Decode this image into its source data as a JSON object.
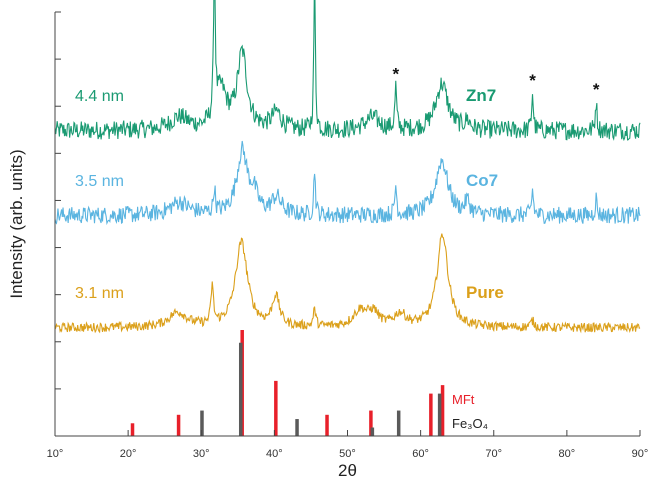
{
  "chart_data": {
    "type": "line",
    "title": "",
    "xlabel": "2θ",
    "ylabel": "Intensity (arb. units)",
    "xlim": [
      10,
      90
    ],
    "x_ticks": [
      "10°",
      "20°",
      "30°",
      "40°",
      "50°",
      "60°",
      "70°",
      "80°",
      "90°"
    ],
    "y_ticks_count": 9,
    "grid": false,
    "series": [
      {
        "name": "Zn7",
        "size_label": "4.4 nm",
        "color": "#1a9a72",
        "baseline": 0.72,
        "noise": 0.022,
        "peaks": [
          {
            "x": 27.0,
            "h": 0.03,
            "w": 1.5
          },
          {
            "x": 31.8,
            "h": 0.4,
            "w": 0.12
          },
          {
            "x": 32.7,
            "h": 0.09,
            "w": 0.9
          },
          {
            "x": 35.6,
            "h": 0.18,
            "w": 0.8
          },
          {
            "x": 40.3,
            "h": 0.04,
            "w": 0.8
          },
          {
            "x": 45.5,
            "h": 0.37,
            "w": 0.12
          },
          {
            "x": 53.4,
            "h": 0.03,
            "w": 1.2
          },
          {
            "x": 56.6,
            "h": 0.1,
            "w": 0.14
          },
          {
            "x": 62.9,
            "h": 0.11,
            "w": 1.0
          },
          {
            "x": 66.4,
            "h": 0.02,
            "w": 0.4
          },
          {
            "x": 75.3,
            "h": 0.09,
            "w": 0.14
          },
          {
            "x": 84.0,
            "h": 0.07,
            "w": 0.14
          }
        ]
      },
      {
        "name": "Co7",
        "size_label": "3.5 nm",
        "color": "#5ab4e0",
        "baseline": 0.52,
        "noise": 0.02,
        "peaks": [
          {
            "x": 27.0,
            "h": 0.03,
            "w": 1.5
          },
          {
            "x": 31.8,
            "h": 0.06,
            "w": 0.15
          },
          {
            "x": 35.6,
            "h": 0.15,
            "w": 0.9
          },
          {
            "x": 37.2,
            "h": 0.04,
            "w": 0.6
          },
          {
            "x": 40.3,
            "h": 0.04,
            "w": 0.8
          },
          {
            "x": 45.5,
            "h": 0.11,
            "w": 0.13
          },
          {
            "x": 56.6,
            "h": 0.07,
            "w": 0.15
          },
          {
            "x": 62.9,
            "h": 0.13,
            "w": 1.0
          },
          {
            "x": 66.4,
            "h": 0.03,
            "w": 0.4
          },
          {
            "x": 75.3,
            "h": 0.06,
            "w": 0.15
          },
          {
            "x": 84.0,
            "h": 0.04,
            "w": 0.15
          }
        ]
      },
      {
        "name": "Pure",
        "size_label": "3.1 nm",
        "color": "#dba01b",
        "baseline": 0.255,
        "noise": 0.011,
        "peaks": [
          {
            "x": 26.8,
            "h": 0.035,
            "w": 1.5
          },
          {
            "x": 31.5,
            "h": 0.09,
            "w": 0.2
          },
          {
            "x": 35.5,
            "h": 0.2,
            "w": 1.0
          },
          {
            "x": 40.2,
            "h": 0.07,
            "w": 0.6
          },
          {
            "x": 45.5,
            "h": 0.04,
            "w": 0.2
          },
          {
            "x": 51.8,
            "h": 0.04,
            "w": 1.2
          },
          {
            "x": 53.6,
            "h": 0.03,
            "w": 0.8
          },
          {
            "x": 57.2,
            "h": 0.03,
            "w": 1.0
          },
          {
            "x": 63.0,
            "h": 0.22,
            "w": 0.9
          },
          {
            "x": 75.3,
            "h": 0.015,
            "w": 0.3
          }
        ]
      }
    ],
    "reference_patterns": [
      {
        "name": "MFt",
        "color": "#e8202a",
        "lines": [
          {
            "x": 20.6,
            "h": 0.03
          },
          {
            "x": 26.9,
            "h": 0.05
          },
          {
            "x": 35.6,
            "h": 0.25
          },
          {
            "x": 40.2,
            "h": 0.13
          },
          {
            "x": 47.2,
            "h": 0.05
          },
          {
            "x": 53.2,
            "h": 0.06
          },
          {
            "x": 61.4,
            "h": 0.1
          },
          {
            "x": 63.0,
            "h": 0.12
          }
        ]
      },
      {
        "name": "Fe₃O₄",
        "color": "#5a5a5a",
        "lines": [
          {
            "x": 30.1,
            "h": 0.06
          },
          {
            "x": 35.4,
            "h": 0.22
          },
          {
            "x": 43.1,
            "h": 0.04
          },
          {
            "x": 53.4,
            "h": 0.02
          },
          {
            "x": 57.0,
            "h": 0.06
          },
          {
            "x": 62.6,
            "h": 0.1
          }
        ]
      }
    ],
    "impurity_markers": [
      {
        "x": 31.8,
        "label": "*"
      },
      {
        "x": 45.5,
        "label": "*"
      },
      {
        "x": 56.6,
        "label": "*"
      },
      {
        "x": 75.3,
        "label": "*"
      },
      {
        "x": 84.0,
        "label": "*"
      }
    ]
  }
}
